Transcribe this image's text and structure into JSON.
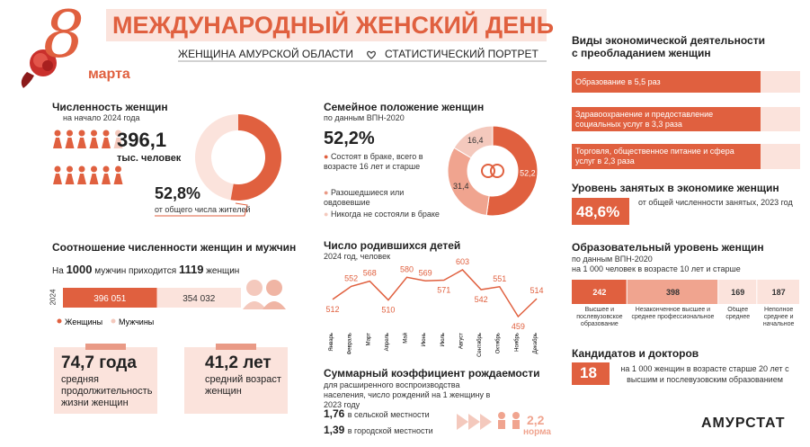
{
  "header": {
    "title": "МЕЖДУНАРОДНЫЙ ЖЕНСКИЙ ДЕНЬ",
    "subtitle_left": "ЖЕНЩИНА АМУРСКОЙ ОБЛАСТИ",
    "subtitle_right": "СТАТИСТИЧЕСКИЙ ПОРТРЕТ",
    "logo_number": "8",
    "logo_text": "марта"
  },
  "population": {
    "title": "Численность женщин",
    "subtitle": "на начало 2024 года",
    "value": "396,1",
    "unit": "тыс. человек",
    "share": 52.8,
    "share_label": "52,8%",
    "share_note": "от общего числа жителей"
  },
  "ratio": {
    "title": "Соотношение численности женщин и мужчин",
    "text_1": "На",
    "men_base": "1000",
    "text_2": "мужчин приходится",
    "women_count": "1119",
    "text_3": "женщин",
    "year": "2024",
    "bars": [
      {
        "name": "Женщины",
        "value": 396051,
        "label": "396 051"
      },
      {
        "name": "Мужчины",
        "value": 354032,
        "label": "354 032"
      }
    ]
  },
  "life": {
    "value": "74,7 года",
    "text": "средняя продолжительность жизни женщин"
  },
  "age": {
    "value": "41,2 лет",
    "text": "средний возраст женщин"
  },
  "family": {
    "title": "Семейное положение женщин",
    "subtitle": "по данным ВПН-2020",
    "value": "52,2%",
    "note": "Состоят в браке, всего в возрасте 16 лет и старше",
    "items": [
      "Разошедшиеся или овдовевшие",
      "Никогда не состояли в браке"
    ],
    "values": [
      52.2,
      31.4,
      16.4
    ],
    "value_labels": [
      "52,2",
      "31,4",
      "16,4"
    ]
  },
  "births": {
    "title": "Число родившихся детей",
    "subtitle": "2024 год, человек",
    "months": [
      "Январь",
      "Февраль",
      "Март",
      "Апрель",
      "Май",
      "Июнь",
      "Июль",
      "Август",
      "Сентябрь",
      "Октябрь",
      "Ноябрь",
      "Декабрь"
    ],
    "values": [
      512,
      552,
      568,
      510,
      580,
      569,
      571,
      603,
      542,
      551,
      459,
      514
    ]
  },
  "fertility": {
    "title": "Суммарный коэффициент рождаемости",
    "subtitle": "для расширенного воспроизводства населения, число рождений на 1 женщину в 2023 году",
    "rural_value": "1,76",
    "rural_label": "в сельской местности",
    "urban_value": "1,39",
    "urban_label": "в городской местности",
    "norm_value": "2,2",
    "norm_label": "норма"
  },
  "activities": {
    "title": "Виды экономической деятельности с преобладанием женщин",
    "items": [
      "Образование  в 5,5 раз",
      "Здравоохранение и предоставление социальных услуг в 3,3 раза",
      "Торговля, общественное питание и сфера услуг в 2,3 раза"
    ]
  },
  "employment": {
    "title": "Уровень занятых в экономике женщин",
    "value": "48,6%",
    "note": "от общей численности занятых, 2023 год"
  },
  "education": {
    "title": "Образовательный уровень женщин",
    "subtitle": "по данным ВПН-2020",
    "subtitle_2": "на 1 000 человек в возрасте 10 лет и старше",
    "values": [
      242,
      398,
      169,
      187
    ],
    "labels": [
      "Высшее и послевузовское образование",
      "Незаконченное высшее и среднее профессиональное",
      "Общее среднее",
      "Неполное среднее и начальное"
    ]
  },
  "candidates": {
    "title": "Кандидатов и докторов",
    "value": "18",
    "note": "на 1 000 женщин в возрасте старше 20 лет с высшим и послевузовским образованием"
  },
  "brand": "АМУРСТАТ"
}
